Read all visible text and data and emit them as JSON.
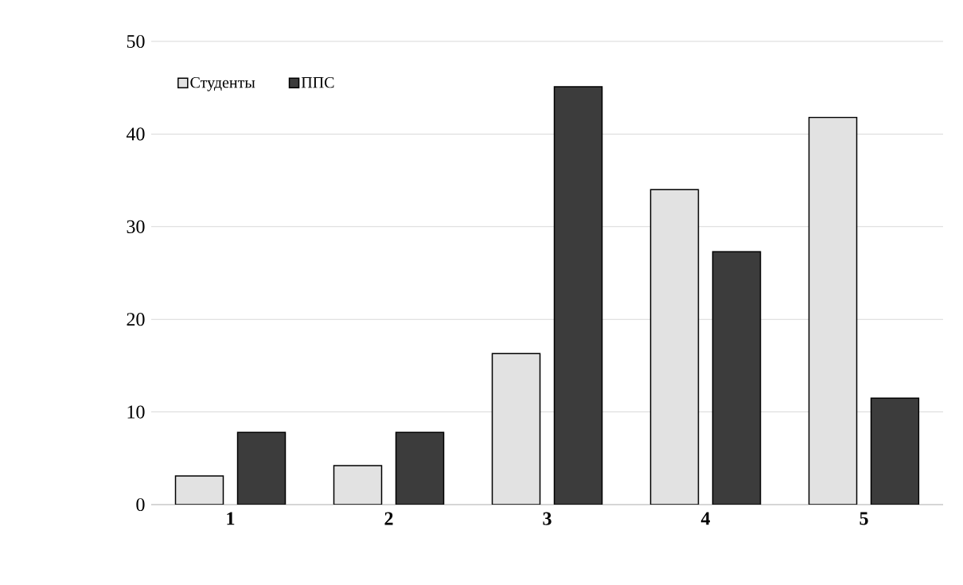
{
  "chart_data": {
    "type": "bar",
    "categories": [
      "1",
      "2",
      "3",
      "4",
      "5"
    ],
    "series": [
      {
        "name": "Студенты",
        "color": "#e2e2e2",
        "values": [
          3.1,
          4.2,
          16.3,
          34.0,
          41.8
        ]
      },
      {
        "name": "ППС",
        "color": "#3c3c3c",
        "values": [
          7.8,
          7.8,
          45.1,
          27.3,
          11.5
        ]
      }
    ],
    "ylim": [
      0,
      50
    ],
    "yticks": [
      0,
      10,
      20,
      30,
      40,
      50
    ],
    "grid": "y",
    "legend": "top left"
  }
}
